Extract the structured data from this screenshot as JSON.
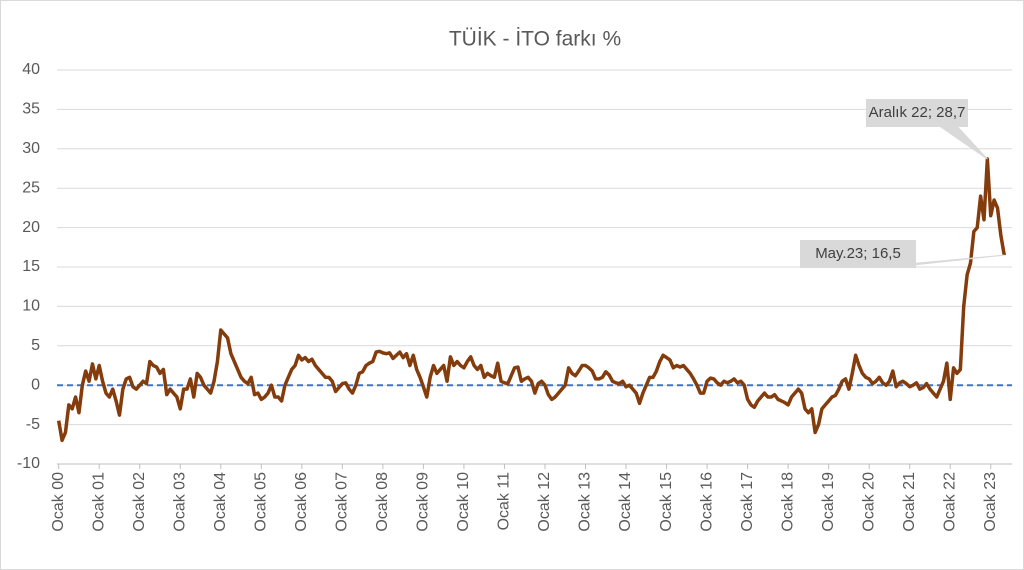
{
  "chart_data": {
    "type": "line",
    "title": "TÜİK - İTO farkı %",
    "categories": [
      "Ocak 00",
      null,
      null,
      null,
      null,
      null,
      null,
      null,
      null,
      null,
      null,
      null,
      "Ocak 01",
      null,
      null,
      null,
      null,
      null,
      null,
      null,
      null,
      null,
      null,
      null,
      "Ocak 02",
      null,
      null,
      null,
      null,
      null,
      null,
      null,
      null,
      null,
      null,
      null,
      "Ocak 03",
      null,
      null,
      null,
      null,
      null,
      null,
      null,
      null,
      null,
      null,
      null,
      "Ocak 04",
      null,
      null,
      null,
      null,
      null,
      null,
      null,
      null,
      null,
      null,
      null,
      "Ocak 05",
      null,
      null,
      null,
      null,
      null,
      null,
      null,
      null,
      null,
      null,
      null,
      "Ocak 06",
      null,
      null,
      null,
      null,
      null,
      null,
      null,
      null,
      null,
      null,
      null,
      "Ocak 07",
      null,
      null,
      null,
      null,
      null,
      null,
      null,
      null,
      null,
      null,
      null,
      "Ocak 08",
      null,
      null,
      null,
      null,
      null,
      null,
      null,
      null,
      null,
      null,
      null,
      "Ocak 09",
      null,
      null,
      null,
      null,
      null,
      null,
      null,
      null,
      null,
      null,
      null,
      "Ocak 10",
      null,
      null,
      null,
      null,
      null,
      null,
      null,
      null,
      null,
      null,
      null,
      "Ocak 11",
      null,
      null,
      null,
      null,
      null,
      null,
      null,
      null,
      null,
      null,
      null,
      "Ocak 12",
      null,
      null,
      null,
      null,
      null,
      null,
      null,
      null,
      null,
      null,
      null,
      "Ocak 13",
      null,
      null,
      null,
      null,
      null,
      null,
      null,
      null,
      null,
      null,
      null,
      "Ocak 14",
      null,
      null,
      null,
      null,
      null,
      null,
      null,
      null,
      null,
      null,
      null,
      "Ocak 15",
      null,
      null,
      null,
      null,
      null,
      null,
      null,
      null,
      null,
      null,
      null,
      "Ocak 16",
      null,
      null,
      null,
      null,
      null,
      null,
      null,
      null,
      null,
      null,
      null,
      "Ocak 17",
      null,
      null,
      null,
      null,
      null,
      null,
      null,
      null,
      null,
      null,
      null,
      "Ocak 18",
      null,
      null,
      null,
      null,
      null,
      null,
      null,
      null,
      null,
      null,
      null,
      "Ocak 19",
      null,
      null,
      null,
      null,
      null,
      null,
      null,
      null,
      null,
      null,
      null,
      "Ocak 20",
      null,
      null,
      null,
      null,
      null,
      null,
      null,
      null,
      null,
      null,
      null,
      "Ocak 21",
      null,
      null,
      null,
      null,
      null,
      null,
      null,
      null,
      null,
      null,
      null,
      "Ocak 22",
      null,
      null,
      null,
      null,
      null,
      null,
      null,
      null,
      null,
      null,
      null,
      "Ocak 23",
      null,
      null,
      null,
      null
    ],
    "values": [
      -4.5,
      -7,
      -6,
      -2.5,
      -3,
      -1.5,
      -3.5,
      0,
      1.8,
      0.5,
      2.7,
      0.8,
      2.5,
      0.5,
      -1,
      -1.5,
      -0.5,
      -2,
      -3.8,
      -0.5,
      0.8,
      1,
      -0.2,
      -0.5,
      0,
      0.5,
      0.2,
      3,
      2.5,
      2.3,
      1.5,
      2,
      -1.2,
      -0.5,
      -1,
      -1.5,
      -3,
      -0.5,
      -0.5,
      0.8,
      -1.5,
      1.5,
      1,
      0,
      -0.5,
      -1,
      0.5,
      3,
      7,
      6.5,
      6,
      4,
      3,
      2,
      1,
      0.5,
      0.2,
      1,
      -1.2,
      -1,
      -1.8,
      -1.5,
      -1,
      0,
      -1.5,
      -1.5,
      -2,
      0,
      1,
      2,
      2.5,
      3.8,
      3.2,
      3.5,
      3,
      3.3,
      2.5,
      2,
      1.5,
      1,
      1,
      0.5,
      -0.8,
      -0.3,
      0.2,
      0.3,
      -0.5,
      -1,
      0,
      1.5,
      1.7,
      2.5,
      2.8,
      3,
      4.2,
      4.3,
      4.1,
      4,
      4.1,
      3.4,
      3.8,
      4.2,
      3.5,
      4,
      2.5,
      3.8,
      2,
      1,
      -0.2,
      -1.5,
      1,
      2.5,
      1.5,
      2,
      2.5,
      0.5,
      3.6,
      2.5,
      3,
      2.5,
      2.2,
      3,
      3.6,
      2.5,
      2,
      2.5,
      1,
      1.5,
      1.2,
      1,
      2.8,
      0.5,
      0.3,
      0.2,
      1.2,
      2.2,
      2.3,
      0.5,
      0.8,
      1,
      0.5,
      -1,
      0.2,
      0.5,
      0,
      -1.2,
      -1.8,
      -1.5,
      -1,
      -0.5,
      0,
      2.2,
      1.5,
      1.2,
      1.8,
      2.5,
      2.5,
      2.2,
      1.8,
      0.8,
      0.8,
      1,
      1.7,
      1.3,
      0.5,
      0.3,
      0.2,
      0.5,
      -0.2,
      0,
      -0.5,
      -1,
      -2.3,
      -1,
      0,
      1,
      1,
      1.8,
      3,
      3.8,
      3.5,
      3.2,
      2.2,
      2.5,
      2.3,
      2.5,
      2,
      1.5,
      0.8,
      0,
      -1,
      -1,
      0.5,
      0.9,
      0.8,
      0.3,
      0,
      0.5,
      0.3,
      0.5,
      0.8,
      0.3,
      0.5,
      0,
      -1.8,
      -2.5,
      -2.8,
      -2,
      -1.5,
      -1,
      -1.5,
      -1.5,
      -1.2,
      -1.8,
      -2,
      -2.2,
      -2.5,
      -1.5,
      -1,
      -0.5,
      -1,
      -3,
      -3.5,
      -3,
      -6,
      -5,
      -3,
      -2.5,
      -2,
      -1.5,
      -1.3,
      -0.5,
      0.5,
      0.8,
      -0.5,
      1.5,
      3.8,
      2.5,
      1.5,
      1,
      0.8,
      0.2,
      0.5,
      1,
      0.3,
      0,
      0.5,
      1.8,
      -0.2,
      0.3,
      0.5,
      0.2,
      -0.2,
      0,
      0.3,
      -0.5,
      -0.3,
      0.2,
      -0.5,
      -1,
      -1.5,
      -0.5,
      0.5,
      2.8,
      -1.8,
      2.2,
      1.5,
      2,
      10,
      14,
      15.5,
      19.5,
      20,
      24,
      21,
      28.7,
      21.5,
      23.5,
      22.5,
      19,
      16.5
    ],
    "value_labels": [
      null,
      null,
      null,
      null,
      null,
      null,
      null,
      null,
      null,
      null,
      null,
      null,
      null,
      null,
      null,
      null,
      null,
      null,
      null,
      null,
      null,
      null,
      null,
      null,
      null,
      null,
      null,
      null,
      null,
      null,
      null,
      null,
      null,
      null,
      null,
      null,
      null,
      null,
      null,
      null,
      null,
      null,
      null,
      null,
      null,
      null,
      null,
      null,
      null,
      null,
      null,
      null,
      null,
      null,
      null,
      null,
      null,
      null,
      null,
      null,
      null,
      null,
      null,
      null,
      null,
      null,
      null,
      null,
      null,
      null,
      null,
      null,
      null,
      null,
      null,
      null,
      null,
      null,
      null,
      null,
      null,
      null,
      null,
      null,
      null,
      null,
      null,
      null,
      null,
      null,
      null,
      null,
      null,
      null,
      null,
      null,
      null,
      null,
      null,
      null,
      null,
      null,
      null,
      null,
      null,
      null,
      null,
      null,
      null,
      null,
      null,
      null,
      null,
      null,
      null,
      null,
      null,
      null,
      null,
      null,
      null,
      null,
      null,
      null,
      null,
      null,
      null,
      null,
      null,
      null,
      null,
      null,
      null,
      null,
      null,
      null,
      null,
      null,
      null,
      null,
      null,
      null,
      null,
      null,
      null,
      null,
      null,
      null,
      null,
      null,
      null,
      null,
      null,
      null,
      null,
      null,
      null,
      null,
      null,
      null,
      null,
      null,
      null,
      null,
      null,
      null,
      null,
      null,
      null,
      null,
      null,
      null,
      null,
      null,
      null,
      null,
      null,
      null,
      null,
      null,
      null,
      null,
      null,
      null,
      null,
      null,
      null,
      null,
      null,
      null,
      null,
      null,
      null,
      null,
      null,
      null,
      null,
      null,
      null,
      null,
      null,
      null,
      null,
      null,
      null,
      null,
      null,
      null,
      null,
      null,
      null,
      null,
      null,
      null,
      null,
      null,
      null,
      null,
      null,
      null,
      null,
      null,
      null,
      null,
      null,
      null,
      null,
      null,
      null,
      null,
      null,
      null,
      null,
      null,
      null,
      null,
      null,
      null,
      null,
      null,
      null,
      null,
      null,
      null,
      null,
      null,
      null,
      null,
      null,
      null,
      null,
      null,
      null,
      null,
      null,
      null,
      null,
      null,
      null,
      null,
      null,
      null,
      null,
      null,
      null,
      null,
      null,
      null,
      null,
      null,
      null,
      null,
      null,
      null,
      null,
      "Aralık 22; 28,7",
      null,
      null,
      null,
      null,
      "May.23; 16,5"
    ],
    "color": "#843c0c",
    "ylim": [
      -10,
      40
    ],
    "yticks": [
      -10,
      -5,
      0,
      5,
      10,
      15,
      20,
      25,
      30,
      35,
      40
    ],
    "grid": true,
    "reference_line": {
      "value": 0,
      "color": "#4472c4"
    }
  }
}
